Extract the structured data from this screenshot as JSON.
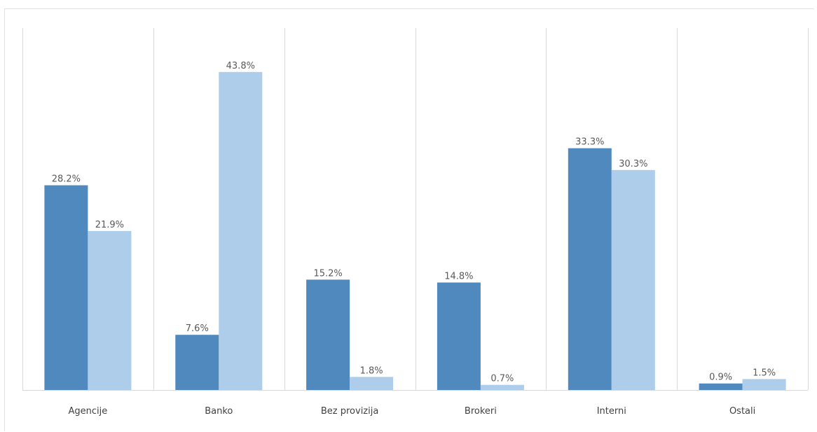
{
  "chart_data": {
    "type": "bar",
    "title": "",
    "xlabel": "",
    "ylabel": "",
    "ylim": [
      0,
      45
    ],
    "grid": "vertical-separators",
    "legend": "none",
    "categories": [
      "Agencije",
      "Banko",
      "Bez provizija",
      "Brokeri",
      "Interni",
      "Ostali"
    ],
    "series": [
      {
        "color": "#4f89be",
        "values": [
          28.2,
          7.6,
          15.2,
          14.8,
          33.3,
          0.9
        ],
        "labels": [
          "28.2%",
          "7.6%",
          "15.2%",
          "14.8%",
          "33.3%",
          "0.9%"
        ]
      },
      {
        "color": "#adcdea",
        "values": [
          21.9,
          43.8,
          1.8,
          0.7,
          30.3,
          1.5
        ],
        "labels": [
          "21.9%",
          "43.8%",
          "1.8%",
          "0.7%",
          "30.3%",
          "1.5%"
        ]
      }
    ]
  }
}
